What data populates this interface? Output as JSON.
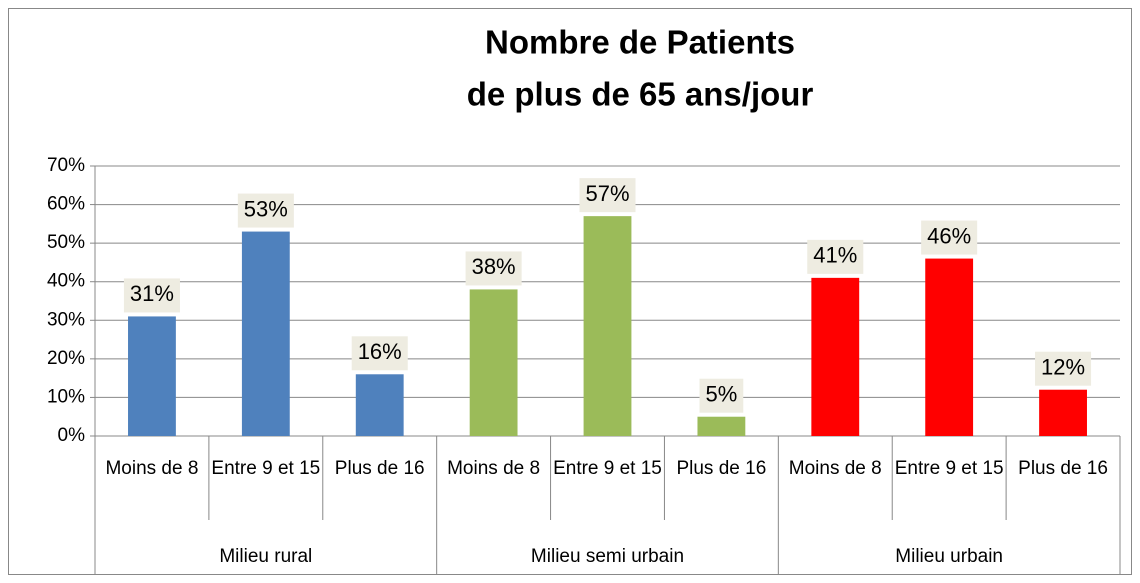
{
  "chart_data": {
    "type": "bar",
    "title": [
      "Nombre de Patients",
      "de plus de 65 ans/jour"
    ],
    "categories": [
      "Moins de 8",
      "Entre 9 et 15",
      "Plus de 16",
      "Moins de 8",
      "Entre 9 et 15",
      "Plus de 16",
      "Moins de 8",
      "Entre 9 et 15",
      "Plus de 16"
    ],
    "groups": [
      "Milieu rural",
      "Milieu semi urbain",
      "Milieu urbain"
    ],
    "values": [
      31,
      53,
      16,
      38,
      57,
      5,
      41,
      46,
      12
    ],
    "value_labels": [
      "31%",
      "53%",
      "16%",
      "38%",
      "57%",
      "5%",
      "41%",
      "46%",
      "12%"
    ],
    "colors": [
      "#4f81bd",
      "#4f81bd",
      "#4f81bd",
      "#9bbb59",
      "#9bbb59",
      "#9bbb59",
      "#ff0000",
      "#ff0000",
      "#ff0000"
    ],
    "ylim": [
      0,
      70
    ],
    "yticks": [
      {
        "value": 0,
        "label": "0%"
      },
      {
        "value": 10,
        "label": "10%"
      },
      {
        "value": 20,
        "label": "20%"
      },
      {
        "value": 30,
        "label": "30%"
      },
      {
        "value": 40,
        "label": "40%"
      },
      {
        "value": 50,
        "label": "50%"
      },
      {
        "value": 60,
        "label": "60%"
      },
      {
        "value": 70,
        "label": "70%"
      }
    ],
    "grid": true
  }
}
